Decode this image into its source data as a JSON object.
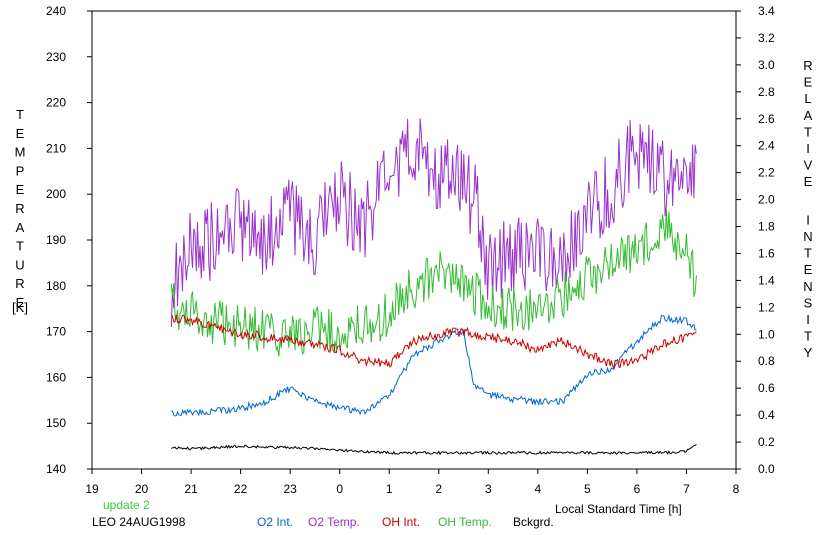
{
  "chart_data": {
    "type": "line",
    "xlabel": "Local Standard Time [h]",
    "ylabel_left": "TEMPERATURE",
    "ylabel_left_unit": "[K]",
    "ylabel_right": "RELATIVE INTENSITY",
    "x_ticks": [
      "19",
      "20",
      "21",
      "22",
      "23",
      "0",
      "1",
      "2",
      "3",
      "4",
      "5",
      "6",
      "7",
      "8"
    ],
    "x_range": [
      19,
      8
    ],
    "y_left_ticks": [
      "140",
      "150",
      "160",
      "170",
      "180",
      "190",
      "200",
      "210",
      "220",
      "230",
      "240"
    ],
    "y_left_range": [
      140,
      240
    ],
    "y_right_ticks": [
      "0.0",
      "0.2",
      "0.4",
      "0.6",
      "0.8",
      "1.0",
      "1.2",
      "1.4",
      "1.6",
      "1.8",
      "2.0",
      "2.2",
      "2.4",
      "2.6",
      "2.8",
      "3.0",
      "3.2",
      "3.4"
    ],
    "y_right_range": [
      0,
      3.4
    ],
    "grid": false,
    "notes": [
      "update 2",
      "LEO 24AUG1998"
    ],
    "series": [
      {
        "name": "O2 Int.",
        "axis": "right",
        "color": "#0066cc",
        "x": [
          20.6,
          21.0,
          21.5,
          22.0,
          22.5,
          23.0,
          23.5,
          24.0,
          24.5,
          25.0,
          25.5,
          26.0,
          26.3,
          26.5,
          26.7,
          27.0,
          27.5,
          28.0,
          28.5,
          29.0,
          29.5,
          30.0,
          30.5,
          31.0,
          31.2
        ],
        "y": [
          0.41,
          0.42,
          0.43,
          0.45,
          0.5,
          0.6,
          0.5,
          0.46,
          0.42,
          0.55,
          0.85,
          0.95,
          1.0,
          1.03,
          0.63,
          0.55,
          0.52,
          0.5,
          0.5,
          0.7,
          0.75,
          0.95,
          1.12,
          1.1,
          1.05
        ]
      },
      {
        "name": "O2 Temp.",
        "axis": "left",
        "color": "#9933cc",
        "x": [
          20.6,
          21.0,
          21.5,
          22.0,
          22.5,
          23.0,
          23.5,
          24.0,
          24.5,
          25.0,
          25.5,
          26.0,
          26.5,
          26.8,
          27.0,
          27.5,
          28.0,
          28.5,
          29.0,
          29.5,
          30.0,
          30.5,
          31.0,
          31.2
        ],
        "y": [
          180,
          188,
          190,
          193,
          190,
          195,
          190,
          199,
          194,
          203,
          210,
          205,
          203,
          196,
          185,
          186,
          187,
          186,
          194,
          202,
          210,
          203,
          208,
          206
        ]
      },
      {
        "name": "OH Int.",
        "axis": "right",
        "color": "#cc0000",
        "x": [
          20.6,
          21.0,
          21.5,
          22.0,
          22.5,
          23.0,
          23.5,
          24.0,
          24.5,
          25.0,
          25.5,
          26.0,
          26.5,
          27.0,
          27.5,
          28.0,
          28.5,
          29.0,
          29.5,
          30.0,
          30.5,
          31.0,
          31.2
        ],
        "y": [
          1.13,
          1.1,
          1.05,
          1.0,
          0.98,
          0.95,
          0.92,
          0.88,
          0.8,
          0.78,
          0.95,
          1.0,
          1.02,
          0.98,
          0.95,
          0.88,
          0.95,
          0.85,
          0.78,
          0.8,
          0.92,
          0.98,
          1.05
        ]
      },
      {
        "name": "OH Temp.",
        "axis": "left",
        "color": "#33bb33",
        "x": [
          20.6,
          21.0,
          21.5,
          22.0,
          22.5,
          23.0,
          23.5,
          24.0,
          24.5,
          25.0,
          25.5,
          26.0,
          26.5,
          27.0,
          27.5,
          28.0,
          28.5,
          29.0,
          29.5,
          30.0,
          30.5,
          31.0,
          31.2
        ],
        "y": [
          176,
          174,
          172,
          171,
          170,
          169,
          171,
          170,
          171,
          174,
          180,
          183,
          180,
          176,
          175,
          174,
          178,
          182,
          185,
          188,
          193,
          188,
          180
        ]
      },
      {
        "name": "Bckgrd.",
        "axis": "right",
        "color": "#000000",
        "x": [
          20.6,
          21.0,
          21.5,
          22.0,
          22.5,
          23.0,
          23.5,
          24.0,
          24.5,
          25.0,
          25.5,
          26.0,
          26.5,
          27.0,
          27.5,
          28.0,
          28.5,
          29.0,
          29.5,
          30.0,
          30.5,
          31.0,
          31.2
        ],
        "y": [
          0.16,
          0.15,
          0.16,
          0.17,
          0.16,
          0.16,
          0.15,
          0.14,
          0.13,
          0.12,
          0.12,
          0.12,
          0.12,
          0.12,
          0.12,
          0.12,
          0.12,
          0.12,
          0.12,
          0.12,
          0.12,
          0.13,
          0.19
        ]
      }
    ]
  }
}
